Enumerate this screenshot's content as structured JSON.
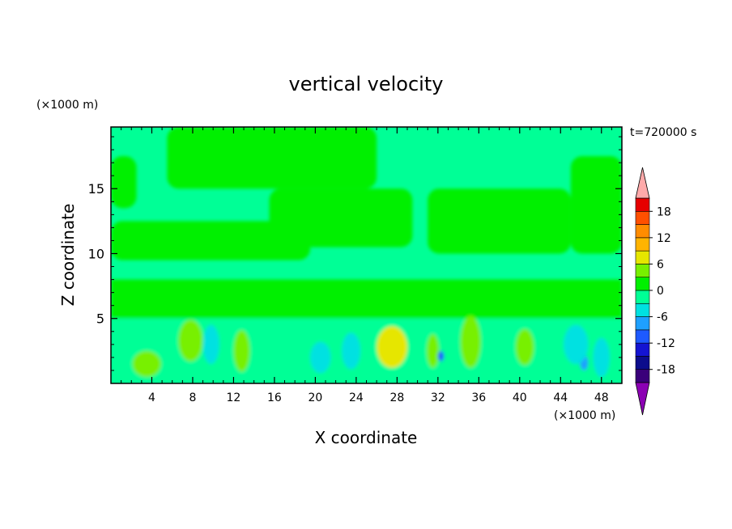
{
  "chart_data": {
    "type": "heatmap",
    "title": "vertical velocity",
    "xlabel": "X coordinate",
    "ylabel": "Z coordinate",
    "x_unit": "(×1000 m)",
    "y_unit": "(×1000 m)",
    "time_label": "t=720000 s",
    "xlim": [
      0,
      50
    ],
    "ylim": [
      0,
      19.75
    ],
    "x_ticks": [
      4,
      8,
      12,
      16,
      20,
      24,
      28,
      32,
      36,
      40,
      44,
      48
    ],
    "y_ticks": [
      5,
      10,
      15
    ],
    "colorbar": {
      "levels": [
        -21,
        -18,
        -15,
        -12,
        -9,
        -6,
        -3,
        0,
        3,
        6,
        9,
        12,
        15,
        18,
        21
      ],
      "tick_labels": [
        "18",
        "12",
        "6",
        "0",
        "-6",
        "-12",
        "-18"
      ],
      "tick_values": [
        18,
        12,
        6,
        0,
        -6,
        -12,
        -18
      ],
      "colors": [
        "#3a007a",
        "#0c0c8c",
        "#1414d2",
        "#1e5aff",
        "#1ea0ff",
        "#00e1e1",
        "#00ff96",
        "#00f000",
        "#78f000",
        "#e6e600",
        "#ffb400",
        "#ff8c00",
        "#ff5000",
        "#e60000"
      ],
      "over_color": "#ffaaaa",
      "under_color": "#8c00b4"
    },
    "features": [
      {
        "kind": "band",
        "z0": 0,
        "z1": 5,
        "value": -2
      },
      {
        "kind": "band",
        "z0": 5,
        "z1": 8,
        "value": 1
      },
      {
        "kind": "cell",
        "x": 7.8,
        "z": 3.3,
        "rx": 1.2,
        "rz": 1.6,
        "value": 5
      },
      {
        "kind": "cell",
        "x": 27.5,
        "z": 2.8,
        "rx": 1.5,
        "rz": 1.6,
        "value": 6
      },
      {
        "kind": "cell",
        "x": 35.2,
        "z": 3.2,
        "rx": 1.0,
        "rz": 2.0,
        "value": 5
      },
      {
        "kind": "cell",
        "x": 40.5,
        "z": 2.8,
        "rx": 0.9,
        "rz": 1.4,
        "value": 4
      },
      {
        "kind": "cell",
        "x": 3.5,
        "z": 1.5,
        "rx": 1.4,
        "rz": 1.0,
        "value": 4
      },
      {
        "kind": "cell",
        "x": 12.8,
        "z": 2.5,
        "rx": 0.8,
        "rz": 1.6,
        "value": 3
      },
      {
        "kind": "cell",
        "x": 31.5,
        "z": 2.5,
        "rx": 0.6,
        "rz": 1.3,
        "value": 3
      },
      {
        "kind": "cell",
        "x": 20.5,
        "z": 2.0,
        "rx": 1.0,
        "rz": 1.2,
        "value": -5
      },
      {
        "kind": "cell",
        "x": 23.5,
        "z": 2.5,
        "rx": 0.9,
        "rz": 1.4,
        "value": -5
      },
      {
        "kind": "cell",
        "x": 32.3,
        "z": 2.1,
        "rx": 0.3,
        "rz": 0.4,
        "value": -10
      },
      {
        "kind": "cell",
        "x": 46.3,
        "z": 1.6,
        "rx": 0.4,
        "rz": 0.6,
        "value": -9
      },
      {
        "kind": "cell",
        "x": 45.5,
        "z": 3.0,
        "rx": 1.2,
        "rz": 1.5,
        "value": -5
      },
      {
        "kind": "cell",
        "x": 48.0,
        "z": 2.0,
        "rx": 0.8,
        "rz": 1.5,
        "value": -4
      },
      {
        "kind": "cell",
        "x": 9.8,
        "z": 3.0,
        "rx": 0.8,
        "rz": 1.5,
        "value": -4
      },
      {
        "kind": "region",
        "x0": 5.5,
        "x1": 26.0,
        "z0": 15.0,
        "z1": 19.75,
        "value": 1
      },
      {
        "kind": "region",
        "x0": 15.5,
        "x1": 29.5,
        "z0": 10.5,
        "z1": 15.0,
        "value": 1
      },
      {
        "kind": "region",
        "x0": 0,
        "x1": 19.5,
        "z0": 9.5,
        "z1": 12.5,
        "value": 1
      },
      {
        "kind": "region",
        "x0": 31.0,
        "x1": 45.0,
        "z0": 10.0,
        "z1": 15.0,
        "value": 1
      },
      {
        "kind": "region",
        "x0": 45.0,
        "x1": 50.0,
        "z0": 10.0,
        "z1": 17.5,
        "value": 1
      },
      {
        "kind": "region",
        "x0": 0,
        "x1": 2.5,
        "z0": 13.5,
        "z1": 17.5,
        "value": 1
      }
    ]
  }
}
